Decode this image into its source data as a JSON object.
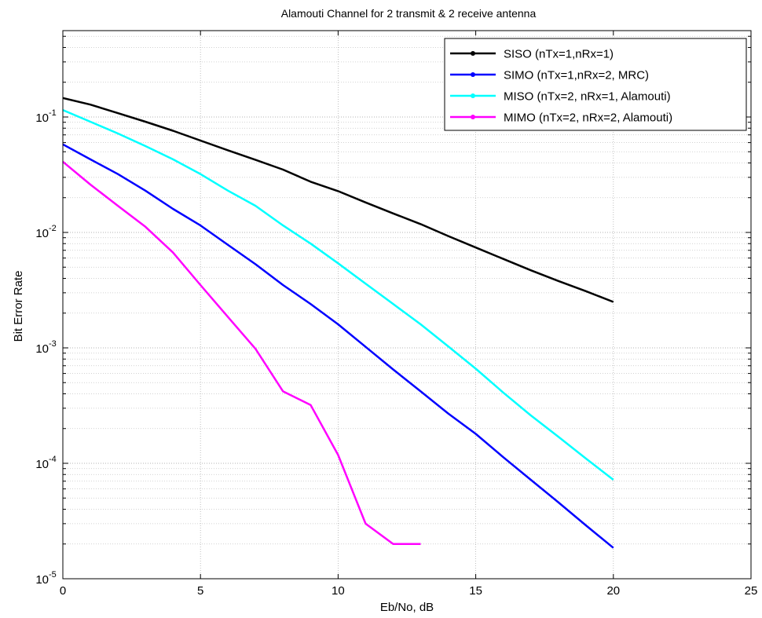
{
  "chart_data": {
    "type": "line",
    "title": "Alamouti Channel for 2 transmit & 2 receive antenna",
    "xlabel": "Eb/No, dB",
    "ylabel": "Bit Error Rate",
    "xlim": [
      0,
      25
    ],
    "ylim": [
      1e-05,
      0.56
    ],
    "yscale": "log",
    "grid": true,
    "legend_position": "top-right",
    "x_ticks": [
      {
        "v": 0,
        "label": "0"
      },
      {
        "v": 5,
        "label": "5"
      },
      {
        "v": 10,
        "label": "10"
      },
      {
        "v": 15,
        "label": "15"
      },
      {
        "v": 20,
        "label": "20"
      },
      {
        "v": 25,
        "label": "25"
      }
    ],
    "y_ticks": [
      {
        "v": 1e-05,
        "base": "10",
        "exp": "-5"
      },
      {
        "v": 0.0001,
        "base": "10",
        "exp": "-4"
      },
      {
        "v": 0.001,
        "base": "10",
        "exp": "-3"
      },
      {
        "v": 0.01,
        "base": "10",
        "exp": "-2"
      },
      {
        "v": 0.1,
        "base": "10",
        "exp": "-1"
      }
    ],
    "series": [
      {
        "name": "SISO (nTx=1,nRx=1)",
        "color": "#000000",
        "x": [
          0,
          1,
          2,
          3,
          4,
          5,
          6,
          7,
          8,
          9,
          10,
          11,
          12,
          13,
          14,
          15,
          16,
          17,
          18,
          19,
          20
        ],
        "y": [
          0.146,
          0.128,
          0.108,
          0.091,
          0.076,
          0.0625,
          0.0515,
          0.0425,
          0.035,
          0.0275,
          0.0228,
          0.0182,
          0.0146,
          0.0118,
          0.0093,
          0.0074,
          0.0059,
          0.0047,
          0.0038,
          0.0031,
          0.0025
        ]
      },
      {
        "name": "SIMO (nTx=1,nRx=2, MRC)",
        "color": "#0000ff",
        "x": [
          0,
          1,
          2,
          3,
          4,
          5,
          6,
          7,
          8,
          9,
          10,
          11,
          12,
          13,
          14,
          15,
          16,
          17,
          18,
          19,
          20
        ],
        "y": [
          0.058,
          0.043,
          0.032,
          0.023,
          0.016,
          0.0115,
          0.0078,
          0.0053,
          0.0035,
          0.0024,
          0.0016,
          0.00102,
          0.00065,
          0.00042,
          0.00027,
          0.00018,
          0.000113,
          7.2e-05,
          4.6e-05,
          2.9e-05,
          1.85e-05
        ]
      },
      {
        "name": "MISO (nTx=2, nRx=1, Alamouti)",
        "color": "#00ffff",
        "x": [
          0,
          1,
          2,
          3,
          4,
          5,
          6,
          7,
          8,
          9,
          10,
          11,
          12,
          13,
          14,
          15,
          16,
          17,
          18,
          19,
          20
        ],
        "y": [
          0.115,
          0.091,
          0.072,
          0.056,
          0.043,
          0.032,
          0.023,
          0.017,
          0.0115,
          0.008,
          0.0054,
          0.0036,
          0.0024,
          0.0016,
          0.00103,
          0.00066,
          0.00041,
          0.00026,
          0.00017,
          0.00011,
          7.2e-05
        ]
      },
      {
        "name": "MIMO (nTx=2, nRx=2, Alamouti)",
        "color": "#ff00ff",
        "x": [
          0,
          1,
          2,
          3,
          4,
          5,
          6,
          7,
          8,
          9,
          10,
          11,
          12,
          13
        ],
        "y": [
          0.041,
          0.026,
          0.017,
          0.0112,
          0.0067,
          0.0035,
          0.00185,
          0.00098,
          0.00042,
          0.00032,
          0.000118,
          3e-05,
          2e-05,
          2e-05
        ]
      }
    ]
  }
}
